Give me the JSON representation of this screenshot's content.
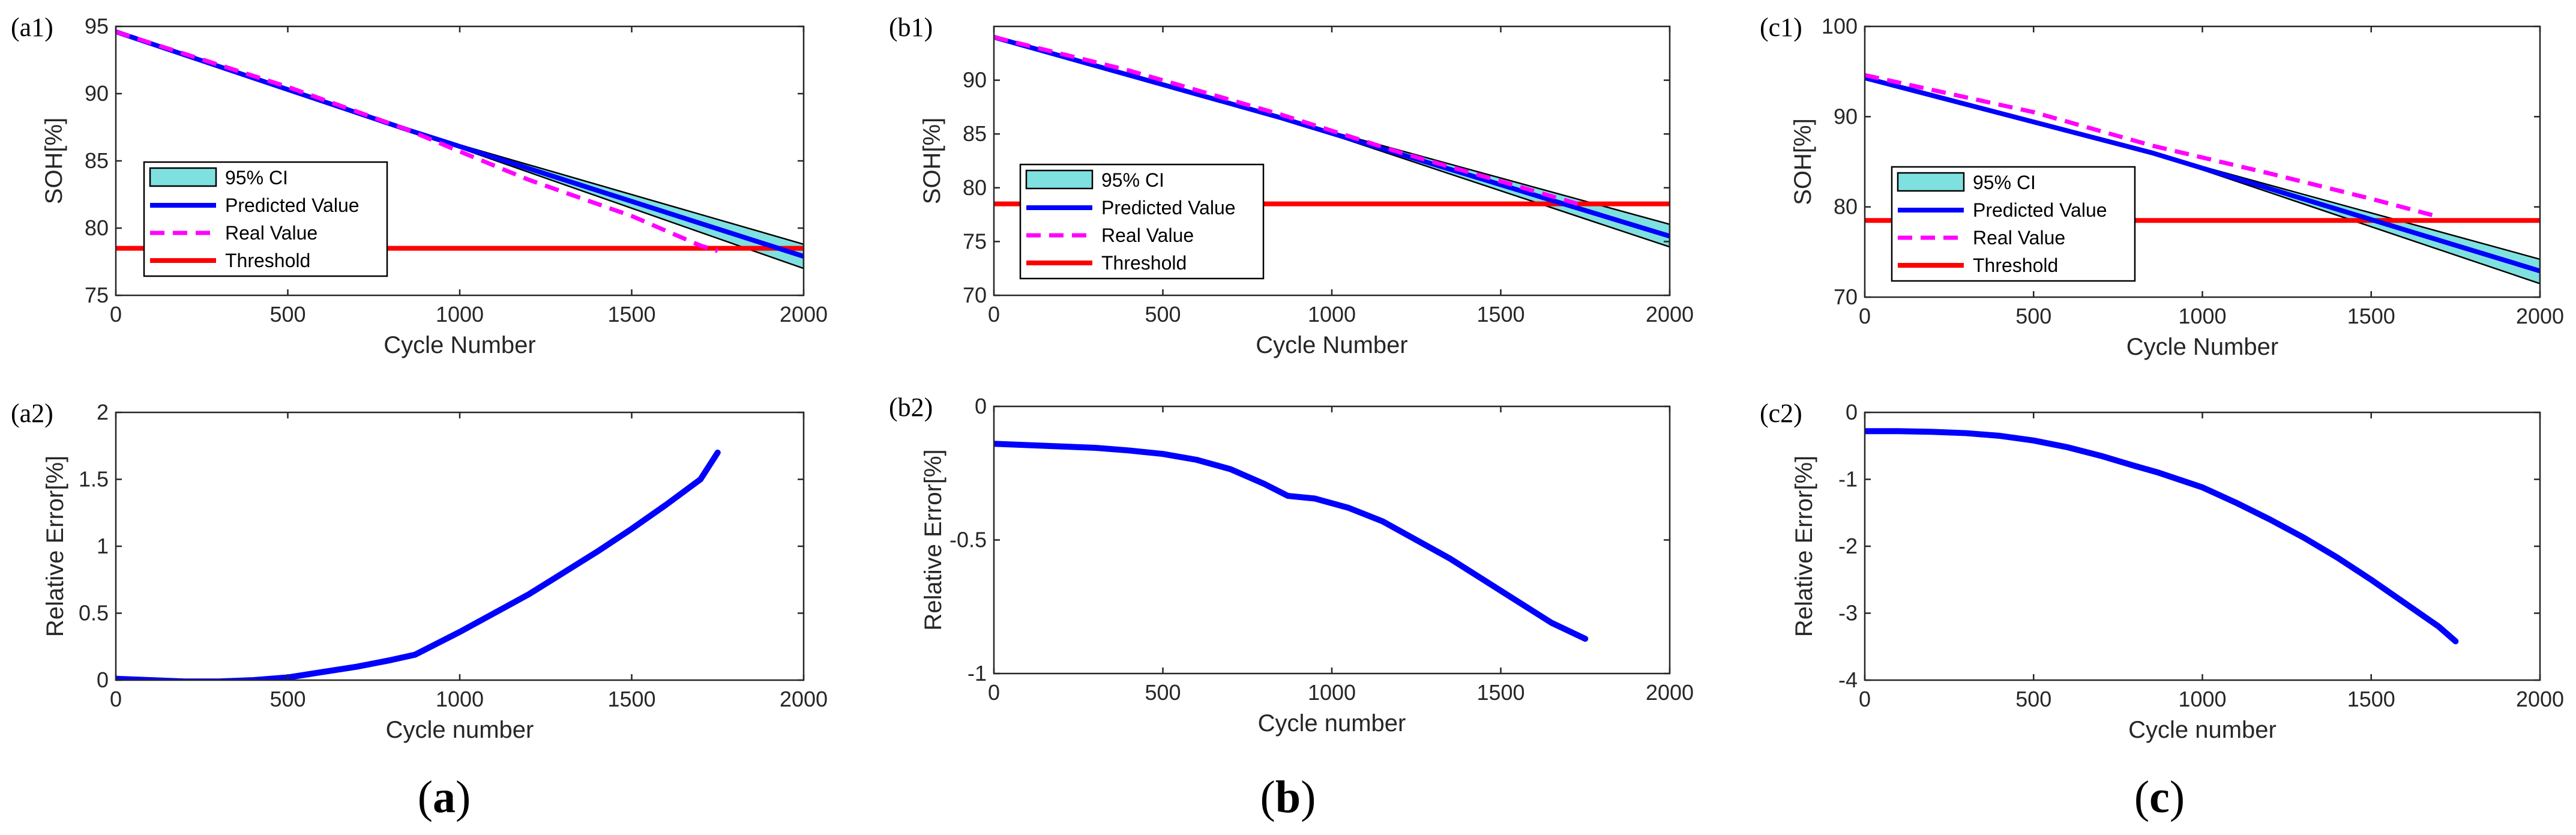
{
  "legend": {
    "ci": "95% CI",
    "pred": "Predicted Value",
    "real": "Real Value",
    "thresh": "Threshold"
  },
  "colors": {
    "ci_fill": "#7fe0e0",
    "pred": "#0000ff",
    "real": "#ff00ff",
    "thresh": "#ff0000",
    "axis": "#262626"
  },
  "captions": [
    "a",
    "b",
    "c"
  ],
  "chart_data": [
    {
      "type": "line",
      "label": "(a1)",
      "xlabel": "Cycle Number",
      "ylabel": "SOH[%]",
      "xlim": [
        0,
        2000
      ],
      "ylim": [
        75,
        95
      ],
      "xticks": [
        0,
        500,
        1000,
        1500,
        2000
      ],
      "yticks": [
        75,
        80,
        85,
        90,
        95
      ],
      "threshold": 78.5,
      "ci": {
        "x": [
          0,
          850,
          2000
        ],
        "lower": [
          94.6,
          87.3,
          77.0
        ],
        "upper": [
          94.6,
          87.3,
          78.8
        ]
      },
      "predicted": {
        "x": [
          0,
          850,
          2000
        ],
        "y": [
          94.6,
          87.3,
          77.9
        ]
      },
      "real": {
        "x": [
          0,
          500,
          850,
          1000,
          1200,
          1500,
          1700,
          1750
        ],
        "y": [
          94.6,
          90.5,
          87.3,
          85.7,
          83.6,
          80.9,
          78.7,
          78.3
        ]
      }
    },
    {
      "type": "line",
      "label": "(b1)",
      "xlabel": "Cycle Number",
      "ylabel": "SOH[%]",
      "xlim": [
        0,
        2000
      ],
      "ylim": [
        70,
        95
      ],
      "xticks": [
        0,
        500,
        1000,
        1500,
        2000
      ],
      "yticks": [
        70,
        75,
        80,
        85,
        90
      ],
      "threshold": 78.5,
      "ci": {
        "x": [
          0,
          850,
          2000
        ],
        "lower": [
          94.0,
          86.5,
          74.5
        ],
        "upper": [
          94.0,
          86.5,
          76.6
        ]
      },
      "predicted": {
        "x": [
          0,
          850,
          2000
        ],
        "y": [
          94.0,
          86.5,
          75.5
        ]
      },
      "real": {
        "x": [
          0,
          400,
          850,
          1200,
          1500,
          1750
        ],
        "y": [
          94.0,
          90.9,
          86.8,
          83.3,
          80.6,
          78.3
        ]
      }
    },
    {
      "type": "line",
      "label": "(c1)",
      "xlabel": "Cycle Number",
      "ylabel": "SOH[%]",
      "xlim": [
        0,
        2000
      ],
      "ylim": [
        70,
        100
      ],
      "xticks": [
        0,
        500,
        1000,
        1500,
        2000
      ],
      "yticks": [
        70,
        80,
        90,
        100
      ],
      "threshold": 78.5,
      "ci": {
        "x": [
          0,
          850,
          2000
        ],
        "lower": [
          94.3,
          86.0,
          71.5
        ],
        "upper": [
          94.3,
          86.0,
          74.2
        ]
      },
      "predicted": {
        "x": [
          0,
          850,
          2000
        ],
        "y": [
          94.3,
          86.0,
          72.9
        ]
      },
      "real": {
        "x": [
          0,
          500,
          850,
          1200,
          1500,
          1700
        ],
        "y": [
          94.6,
          90.5,
          86.8,
          83.7,
          80.9,
          78.9
        ]
      }
    },
    {
      "type": "line",
      "label": "(a2)",
      "xlabel": "Cycle number",
      "ylabel": "Relative Error[%]",
      "xlim": [
        0,
        2000
      ],
      "ylim": [
        0,
        2
      ],
      "xticks": [
        0,
        500,
        1000,
        1500,
        2000
      ],
      "yticks": [
        0,
        0.5,
        1,
        1.5,
        2
      ],
      "series": [
        {
          "name": "Relative Error",
          "x": [
            0,
            100,
            200,
            300,
            400,
            500,
            600,
            700,
            800,
            870,
            1000,
            1100,
            1200,
            1300,
            1400,
            1500,
            1600,
            1700,
            1750
          ],
          "y": [
            0.01,
            0.0,
            -0.01,
            -0.01,
            0.0,
            0.02,
            0.06,
            0.1,
            0.15,
            0.19,
            0.36,
            0.5,
            0.64,
            0.8,
            0.96,
            1.13,
            1.31,
            1.5,
            1.7
          ]
        }
      ]
    },
    {
      "type": "line",
      "label": "(b2)",
      "xlabel": "Cycle number",
      "ylabel": "Relative Error[%]",
      "xlim": [
        0,
        2000
      ],
      "ylim": [
        -1,
        0
      ],
      "xticks": [
        0,
        500,
        1000,
        1500,
        2000
      ],
      "yticks": [
        -1,
        -0.5,
        0
      ],
      "series": [
        {
          "name": "Relative Error",
          "x": [
            0,
            100,
            200,
            300,
            400,
            500,
            600,
            700,
            800,
            870,
            950,
            1050,
            1150,
            1250,
            1350,
            1450,
            1550,
            1650,
            1750
          ],
          "y": [
            -0.14,
            -0.145,
            -0.15,
            -0.155,
            -0.165,
            -0.178,
            -0.2,
            -0.235,
            -0.29,
            -0.335,
            -0.345,
            -0.38,
            -0.43,
            -0.5,
            -0.57,
            -0.65,
            -0.73,
            -0.81,
            -0.87
          ]
        }
      ]
    },
    {
      "type": "line",
      "label": "(c2)",
      "xlabel": "Cycle number",
      "ylabel": "Relative Error[%]",
      "xlim": [
        0,
        2000
      ],
      "ylim": [
        -4,
        0
      ],
      "xticks": [
        0,
        500,
        1000,
        1500,
        2000
      ],
      "yticks": [
        -4,
        -3,
        -2,
        -1,
        0
      ],
      "series": [
        {
          "name": "Relative Error",
          "x": [
            0,
            100,
            200,
            300,
            400,
            500,
            600,
            700,
            800,
            870,
            1000,
            1100,
            1200,
            1300,
            1400,
            1500,
            1600,
            1700,
            1750
          ],
          "y": [
            -0.28,
            -0.28,
            -0.29,
            -0.31,
            -0.35,
            -0.42,
            -0.52,
            -0.65,
            -0.8,
            -0.9,
            -1.12,
            -1.35,
            -1.6,
            -1.87,
            -2.17,
            -2.5,
            -2.85,
            -3.2,
            -3.42
          ]
        }
      ]
    }
  ]
}
